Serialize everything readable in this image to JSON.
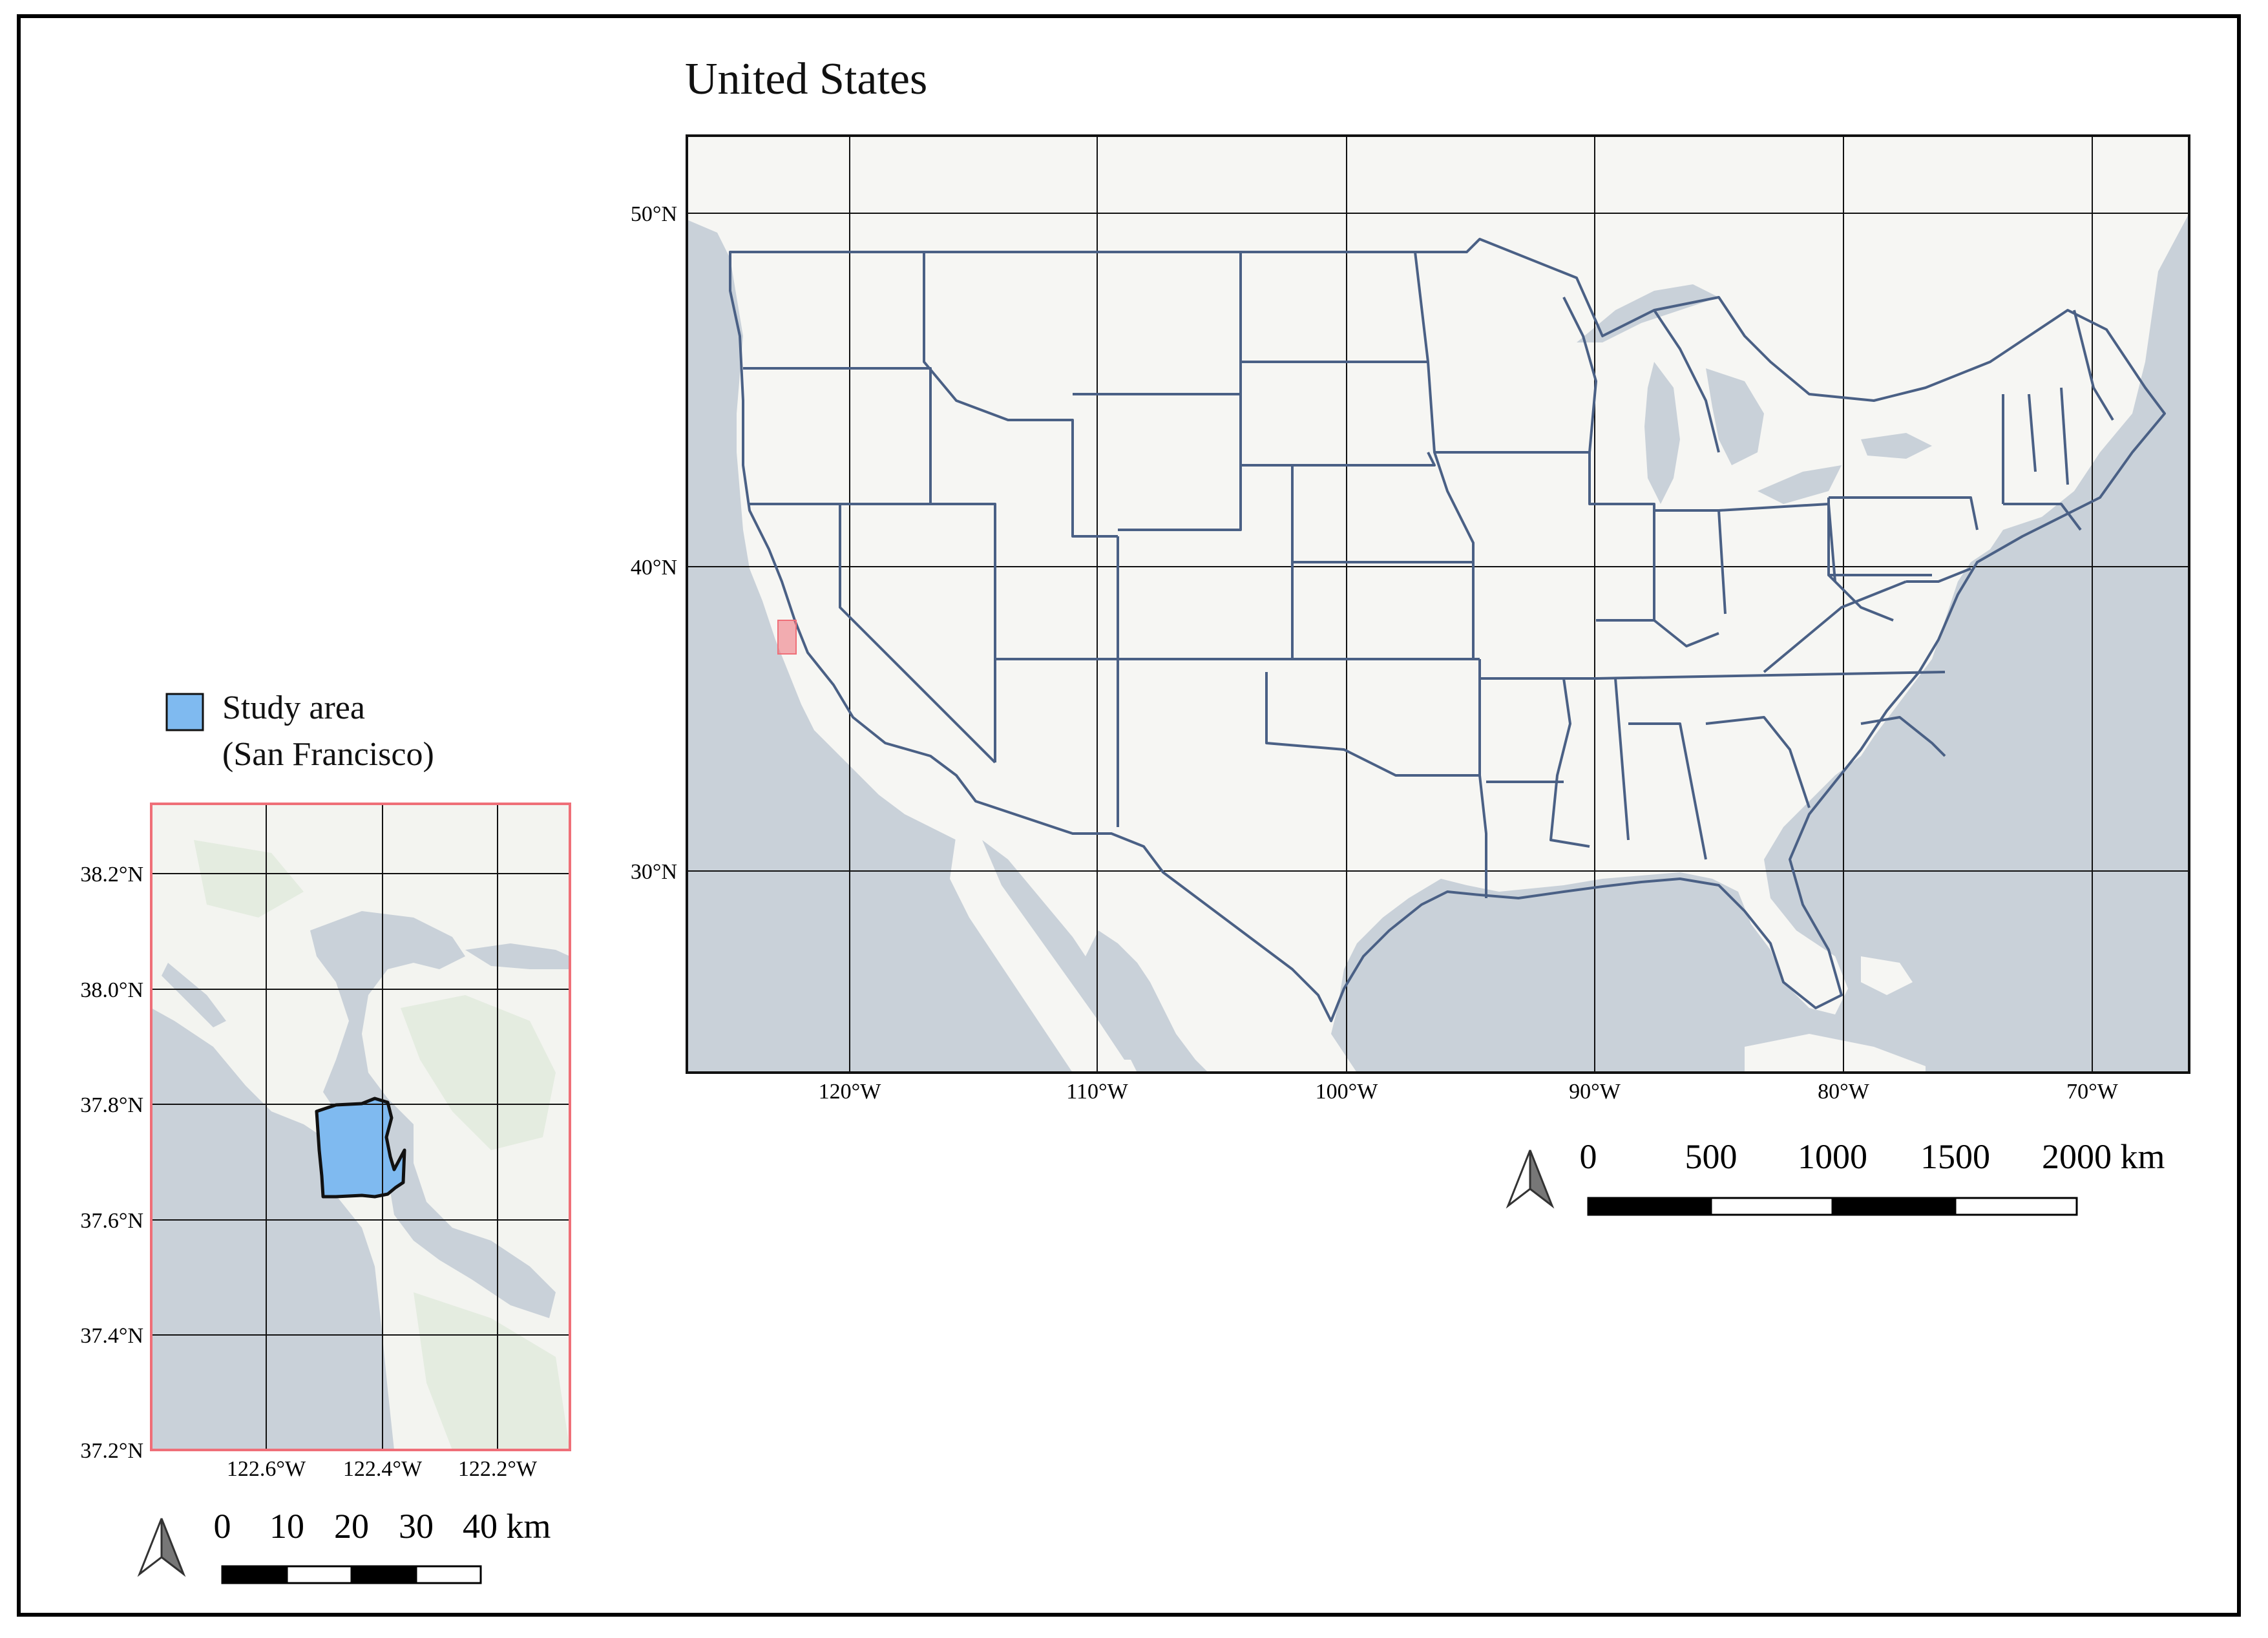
{
  "main_map": {
    "title": "United States",
    "lat_labels": [
      "50°N",
      "40°N",
      "30°N"
    ],
    "lon_labels": [
      "120°W",
      "110°W",
      "100°W",
      "90°W",
      "80°W",
      "70°W"
    ],
    "scale_bar": {
      "labels": [
        "0",
        "500",
        "1000",
        "1500",
        "2000 km"
      ]
    }
  },
  "inset_map": {
    "lat_labels": [
      "38.2°N",
      "38.0°N",
      "37.8°N",
      "37.6°N",
      "37.4°N",
      "37.2°N"
    ],
    "lon_labels": [
      "122.6°W",
      "122.4°W",
      "122.2°W"
    ],
    "scale_bar": {
      "labels": [
        "0",
        "10",
        "20",
        "30",
        "40 km"
      ]
    }
  },
  "legend": {
    "line1": "Study area",
    "line2": "(San Francisco)"
  },
  "colors": {
    "land": "#f6f6f3",
    "water": "#c9d1d9",
    "state_border": "#4a6085",
    "study_area": "#7fbaf0",
    "inset_extent": "#ef6f78"
  },
  "icons": [
    "north-arrow-icon"
  ]
}
